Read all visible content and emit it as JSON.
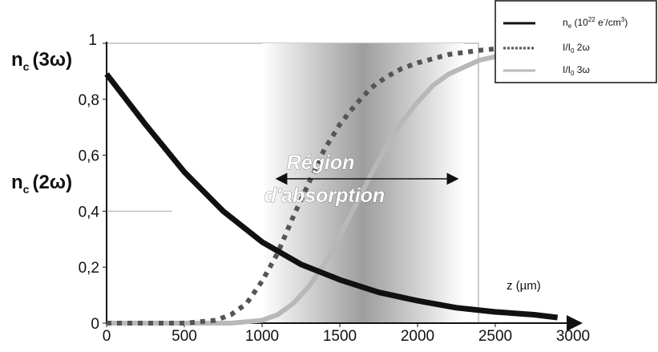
{
  "chart_data": {
    "type": "line",
    "x_ticks": [
      "0",
      "500",
      "1000",
      "1500",
      "2000",
      "2500",
      "3000"
    ],
    "y_ticks": [
      "0",
      "0,2",
      "0,4",
      "0,6",
      "0,8",
      "1"
    ],
    "xlim": [
      0,
      3000
    ],
    "ylim": [
      0,
      1
    ],
    "x_axis_label": "z (µm)",
    "critical_density_labels": [
      {
        "base": "n",
        "sub": "c",
        "rest": "(3ω)",
        "y": 1.0
      },
      {
        "base": "n",
        "sub": "c",
        "rest": "(2ω)",
        "y": 0.4
      }
    ],
    "absorption_region": {
      "label_line1": "Région",
      "label_line2": "d'absorption",
      "x_range": [
        1100,
        2250
      ],
      "shade_range": [
        1000,
        2300
      ]
    },
    "series": [
      {
        "name": "n_e (10^22 e-/cm3)",
        "legend": {
          "base": "n",
          "sub": "e",
          "rest1": " (10",
          "sup": "22",
          "rest2": " e",
          "sup2": "-",
          "rest3": "/cm",
          "sup3": "3",
          "rest4": ")"
        },
        "style": "solid",
        "color": "#111111",
        "x": [
          0,
          250,
          500,
          750,
          1000,
          1250,
          1500,
          1750,
          2000,
          2250,
          2500,
          2750,
          2900
        ],
        "y": [
          0.89,
          0.71,
          0.54,
          0.4,
          0.29,
          0.21,
          0.155,
          0.11,
          0.08,
          0.055,
          0.04,
          0.03,
          0.02
        ]
      },
      {
        "name": "I/I0 2ω",
        "legend": {
          "base": "I/I",
          "sub": "0",
          "rest": " 2ω"
        },
        "style": "dotted",
        "color": "#555555",
        "x": [
          0,
          500,
          700,
          800,
          900,
          1000,
          1100,
          1200,
          1300,
          1400,
          1500,
          1600,
          1700,
          1800,
          1900,
          2000,
          2200,
          2400,
          2600,
          2800,
          2900
        ],
        "y": [
          0,
          0,
          0.01,
          0.03,
          0.07,
          0.15,
          0.25,
          0.38,
          0.5,
          0.62,
          0.71,
          0.78,
          0.84,
          0.88,
          0.91,
          0.93,
          0.96,
          0.975,
          0.985,
          0.99,
          0.995
        ]
      },
      {
        "name": "I/I0 3ω",
        "legend": {
          "base": "I/I",
          "sub": "0",
          "rest": " 3ω"
        },
        "style": "solid",
        "color": "#b8b8b8",
        "x": [
          0,
          800,
          1000,
          1100,
          1200,
          1300,
          1400,
          1500,
          1600,
          1700,
          1800,
          1900,
          2000,
          2100,
          2200,
          2400,
          2600,
          2800,
          2900
        ],
        "y": [
          0,
          0,
          0.01,
          0.03,
          0.07,
          0.13,
          0.21,
          0.31,
          0.42,
          0.53,
          0.63,
          0.72,
          0.79,
          0.85,
          0.89,
          0.94,
          0.965,
          0.975,
          0.98
        ]
      }
    ]
  }
}
